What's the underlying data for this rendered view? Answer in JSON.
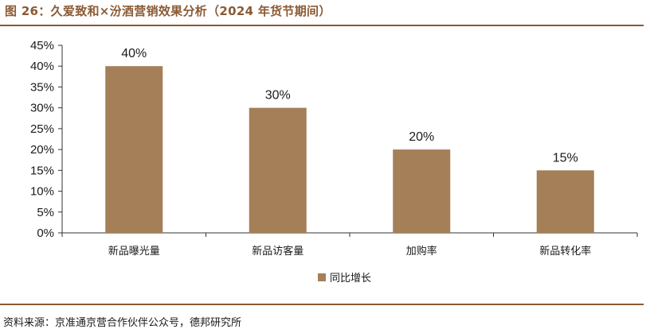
{
  "figure": {
    "title": "图 26：久爱致和×汾酒营销效果分析（2024 年货节期间）",
    "source": "资料来源：京准通京营合作伙伴公众号，德邦研究所"
  },
  "chart_data": {
    "type": "bar",
    "categories": [
      "新品曝光量",
      "新品访客量",
      "加购率",
      "新品转化率"
    ],
    "series": [
      {
        "name": "同比增长",
        "values": [
          40,
          30,
          20,
          15
        ],
        "data_labels": [
          "40%",
          "30%",
          "20%",
          "15%"
        ],
        "color": "#a47f58"
      }
    ],
    "ylim": [
      0,
      45
    ],
    "yticks": [
      0,
      5,
      10,
      15,
      20,
      25,
      30,
      35,
      40,
      45
    ],
    "ytick_labels": [
      "0%",
      "5%",
      "10%",
      "15%",
      "20%",
      "25%",
      "30%",
      "35%",
      "40%",
      "45%"
    ],
    "xlabel": "",
    "ylabel": "",
    "grid": false,
    "legend_position": "bottom-center"
  },
  "colors": {
    "accent": "#8b5a34",
    "bar": "#a47f58",
    "axis": "#333333"
  }
}
